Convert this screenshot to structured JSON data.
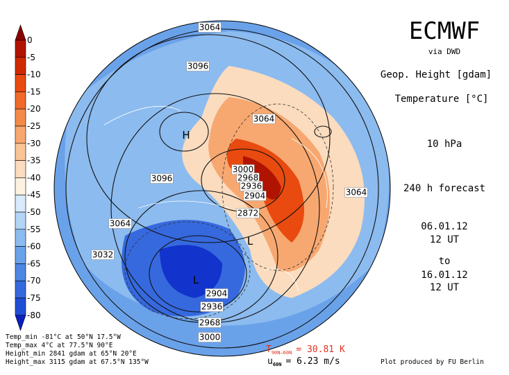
{
  "colorbar": {
    "labels": [
      "0",
      "-5",
      "-10",
      "-15",
      "-20",
      "-25",
      "-30",
      "-35",
      "-40",
      "-45",
      "-50",
      "-55",
      "-60",
      "-65",
      "-70",
      "-75",
      "-80"
    ],
    "colors": [
      "#8c0000",
      "#b01400",
      "#d02a00",
      "#e84a10",
      "#f06a2a",
      "#f48a48",
      "#f7a870",
      "#f9c496",
      "#fbdcbe",
      "#fdf2e0",
      "#d8eafb",
      "#b2d4f5",
      "#8cbbef",
      "#6aa2ea",
      "#4d86e3",
      "#3669de",
      "#224ed6",
      "#1233cc",
      "#0a1fc2"
    ]
  },
  "header": {
    "title": "ECMWF",
    "source": "via DWD"
  },
  "info": {
    "field_1": "Geop. Height [gdam]",
    "field_2": "Temperature [°C]",
    "level": "10 hPa",
    "forecast": "240 h forecast",
    "start_date": "06.01.12",
    "start_time": "12 UT",
    "to": "to",
    "end_date": "16.01.12",
    "end_time": "12 UT"
  },
  "map": {
    "contour_labels": [
      "3064",
      "3096",
      "3064",
      "3096",
      "3000",
      "2968",
      "2936",
      "2904",
      "2872",
      "3064",
      "3064",
      "3032",
      "2904",
      "2936",
      "2968",
      "3000"
    ],
    "markers": [
      "H",
      "L",
      "L"
    ]
  },
  "stats": [
    "Temp_min -81°C at 50°N 17.5°W",
    "Temp_max 4°C at 77.5°N 90°E",
    "Height_min 2841 gdam at 65°N 20°E",
    "Height_max 3115 gdam at 67.5°N 135°W"
  ],
  "footer": {
    "t_symbol": "T",
    "t_sub": "90N–60N",
    "t_value": "= 30.81 K",
    "u_symbol": "u",
    "u_sub": "60N",
    "u_value": "= 6.23 m/s",
    "credit": "Plot produced by FU Berlin"
  }
}
